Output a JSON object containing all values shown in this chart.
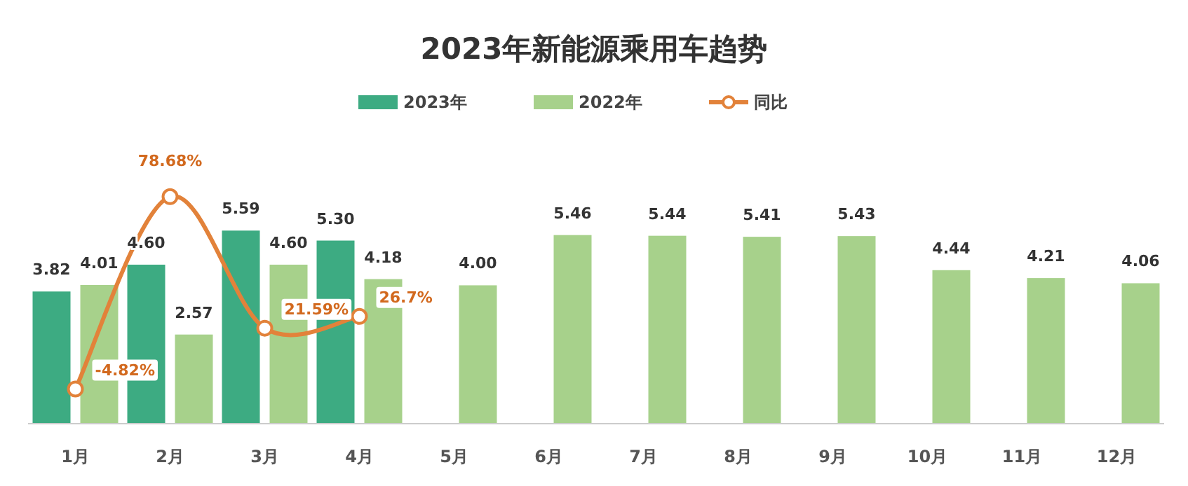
{
  "chart_data": {
    "type": "bar",
    "title": "2023年新能源乘用车趋势",
    "categories": [
      "1月",
      "2月",
      "3月",
      "4月",
      "5月",
      "6月",
      "7月",
      "8月",
      "9月",
      "10月",
      "11月",
      "12月"
    ],
    "series": [
      {
        "name": "2023年",
        "color": "#3dab82",
        "values": [
          3.82,
          4.6,
          5.59,
          5.3,
          null,
          null,
          null,
          null,
          null,
          null,
          null,
          null
        ],
        "value_labels": [
          "3.82",
          "4.60",
          "5.59",
          "5.30",
          null,
          null,
          null,
          null,
          null,
          null,
          null,
          null
        ]
      },
      {
        "name": "2022年",
        "color": "#a7d18b",
        "values": [
          4.01,
          2.57,
          4.6,
          4.18,
          4.0,
          5.46,
          5.44,
          5.41,
          5.43,
          4.44,
          4.21,
          4.06
        ],
        "value_labels": [
          "4.01",
          "2.57",
          "4.60",
          "4.18",
          "4.00",
          "5.46",
          "5.44",
          "5.41",
          "5.43",
          "4.44",
          "4.21",
          "4.06"
        ]
      },
      {
        "name": "同比",
        "type": "line",
        "axis": "y2",
        "color": "#e2823a",
        "marker": "circle",
        "values": [
          -4.82,
          78.68,
          21.59,
          26.7,
          null,
          null,
          null,
          null,
          null,
          null,
          null,
          null
        ],
        "value_labels": [
          "-4.82%",
          "78.68%",
          "21.59%",
          "26.7%",
          null,
          null,
          null,
          null,
          null,
          null,
          null,
          null
        ]
      }
    ],
    "legend": "top"
  }
}
